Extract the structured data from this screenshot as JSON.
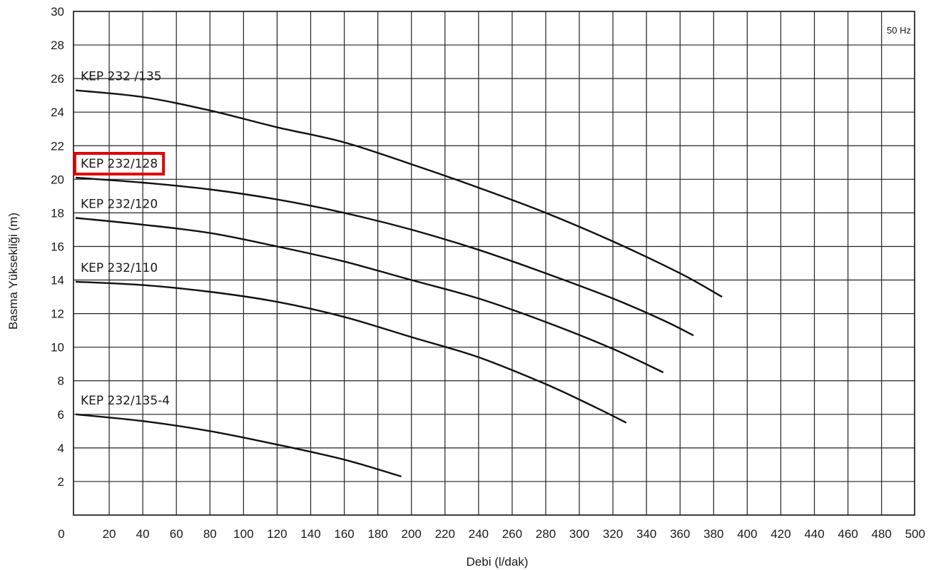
{
  "chart_data": {
    "type": "line",
    "xlabel": "Debi (l/dak)",
    "ylabel": "Basma Yüksekliği (m)",
    "xlim": [
      0,
      500
    ],
    "ylim": [
      0,
      30
    ],
    "xticks": [
      0,
      20,
      40,
      60,
      80,
      100,
      120,
      140,
      160,
      180,
      200,
      220,
      240,
      260,
      280,
      300,
      320,
      340,
      360,
      380,
      400,
      420,
      440,
      460,
      480,
      500
    ],
    "yticks": [
      2,
      4,
      6,
      8,
      10,
      12,
      14,
      16,
      18,
      20,
      22,
      24,
      26,
      28,
      30
    ],
    "grid": true,
    "annotation": "50 Hz",
    "highlighted_series": "KEP 232/128",
    "highlight_color": "#e00000",
    "series": [
      {
        "name": "KEP 232 /135",
        "x": [
          0,
          40,
          80,
          120,
          160,
          200,
          240,
          280,
          320,
          360,
          385
        ],
        "y": [
          25.3,
          24.9,
          24.1,
          23.1,
          22.2,
          20.9,
          19.5,
          18.0,
          16.3,
          14.4,
          13.0
        ]
      },
      {
        "name": "KEP 232/128",
        "x": [
          0,
          40,
          80,
          120,
          160,
          200,
          240,
          280,
          320,
          350,
          368
        ],
        "y": [
          20.1,
          19.8,
          19.4,
          18.8,
          18.0,
          17.0,
          15.8,
          14.4,
          12.9,
          11.6,
          10.7
        ]
      },
      {
        "name": "KEP 232/120",
        "x": [
          0,
          40,
          80,
          120,
          160,
          200,
          240,
          280,
          320,
          350
        ],
        "y": [
          17.7,
          17.3,
          16.8,
          16.0,
          15.1,
          14.0,
          12.9,
          11.5,
          9.9,
          8.5
        ]
      },
      {
        "name": "KEP 232/110",
        "x": [
          0,
          40,
          80,
          120,
          160,
          200,
          240,
          280,
          310,
          328
        ],
        "y": [
          13.9,
          13.7,
          13.3,
          12.7,
          11.8,
          10.6,
          9.4,
          7.8,
          6.4,
          5.5
        ]
      },
      {
        "name": "KEP 232/135-4",
        "x": [
          0,
          40,
          80,
          120,
          160,
          194
        ],
        "y": [
          6.0,
          5.6,
          5.0,
          4.2,
          3.3,
          2.3
        ]
      }
    ]
  }
}
